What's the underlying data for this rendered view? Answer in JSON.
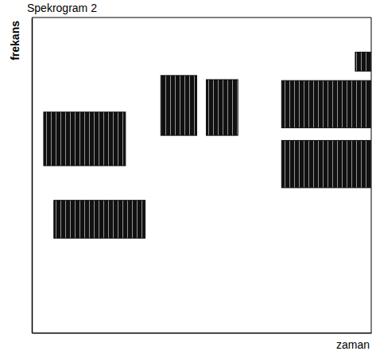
{
  "chart_data": {
    "type": "spectrogram",
    "title": "Spekrogram 2",
    "x_label": "zaman",
    "y_label": "frekans",
    "xlim": [
      0,
      100
    ],
    "ylim": [
      0,
      100
    ],
    "tick_labels": false,
    "color": "#111111",
    "bands": [
      {
        "time": [
          3.5,
          27.6
        ],
        "freq": [
          53,
          70
        ]
      },
      {
        "time": [
          6.5,
          33.4
        ],
        "freq": [
          30,
          42
        ]
      },
      {
        "time": [
          38,
          48.6
        ],
        "freq": [
          62.6,
          81.6
        ]
      },
      {
        "time": [
          51.4,
          60.7
        ],
        "freq": [
          62.6,
          80.3
        ]
      },
      {
        "time": [
          73.6,
          100
        ],
        "freq": [
          65,
          80
        ]
      },
      {
        "time": [
          73.6,
          100
        ],
        "freq": [
          46,
          61
        ]
      },
      {
        "time": [
          95.3,
          100
        ],
        "freq": [
          83,
          89
        ]
      }
    ]
  }
}
